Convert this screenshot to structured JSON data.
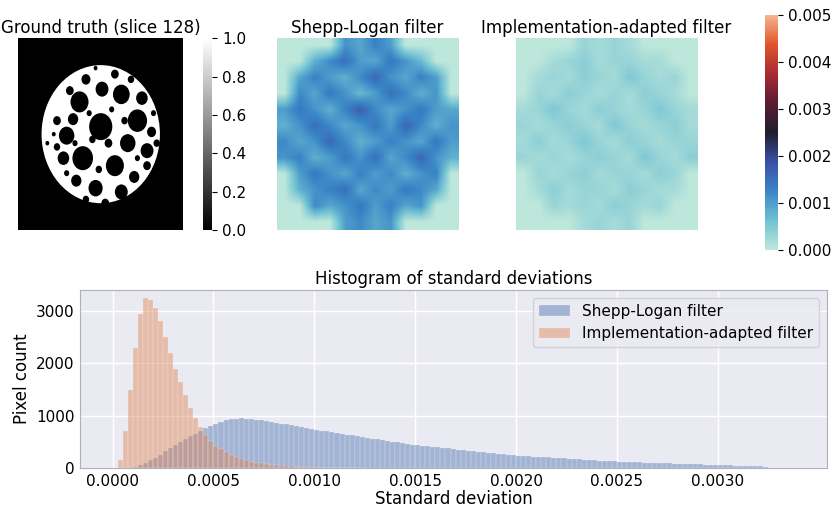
{
  "chart_data": [
    {
      "type": "image",
      "title": "Ground truth (slice 128)",
      "tick_labels": false,
      "xlim": [
        0,
        256
      ],
      "ylim": [
        256,
        0
      ],
      "clim": [
        0.0,
        1.0
      ],
      "colorbar_ticks": [
        0.0,
        0.2,
        0.4,
        0.6,
        0.8,
        1.0
      ],
      "background": 0,
      "disk": {
        "x": 128,
        "y": 128,
        "r": 92,
        "value": 1
      },
      "holes": {
        "value": 0,
        "circles": [
          [
            128,
            118,
            18
          ],
          [
            95,
            85,
            14
          ],
          [
            160,
            75,
            13
          ],
          [
            185,
            110,
            15
          ],
          [
            100,
            160,
            16
          ],
          [
            150,
            170,
            14
          ],
          [
            170,
            140,
            12
          ],
          [
            75,
            130,
            12
          ],
          [
            200,
            150,
            10
          ],
          [
            120,
            200,
            11
          ],
          [
            160,
            205,
            10
          ],
          [
            85,
            108,
            8
          ],
          [
            130,
            68,
            10
          ],
          [
            192,
            80,
            9
          ],
          [
            70,
            160,
            9
          ],
          [
            207,
            125,
            7
          ],
          [
            105,
            55,
            7
          ],
          [
            150,
            48,
            6
          ],
          [
            180,
            185,
            8
          ],
          [
            90,
            190,
            8
          ],
          [
            140,
            140,
            6
          ],
          [
            115,
            135,
            5
          ],
          [
            60,
            110,
            6
          ],
          [
            60,
            145,
            5
          ],
          [
            215,
            140,
            5
          ],
          [
            135,
            220,
            6
          ],
          [
            105,
            215,
            5
          ],
          [
            175,
            55,
            5
          ],
          [
            80,
            70,
            6
          ],
          [
            200,
            170,
            6
          ],
          [
            125,
            175,
            5
          ],
          [
            165,
            110,
            5
          ],
          [
            110,
            100,
            4
          ],
          [
            145,
            95,
            4
          ],
          [
            88,
            140,
            4
          ],
          [
            55,
            128,
            3
          ],
          [
            195,
            200,
            4
          ],
          [
            75,
            180,
            4
          ],
          [
            120,
            40,
            3
          ],
          [
            210,
            100,
            4
          ],
          [
            150,
            225,
            4
          ],
          [
            185,
            160,
            4
          ],
          [
            100,
            240,
            3
          ],
          [
            165,
            40,
            3
          ],
          [
            45,
            140,
            3
          ]
        ]
      }
    },
    {
      "type": "image",
      "title": "Shepp-Logan filter",
      "tick_labels": false,
      "clim": [
        0,
        0.005
      ],
      "cells": [
        [
          0,
          0,
          0,
          0,
          0.0011,
          0.0009,
          0.0013,
          0.001,
          0,
          0,
          0,
          0
        ],
        [
          0,
          0,
          0.0008,
          0.0012,
          0.0015,
          0.001,
          0.0009,
          0.0014,
          0.0011,
          0.0007,
          0,
          0
        ],
        [
          0,
          0.0009,
          0.0013,
          0.001,
          0.0008,
          0.0012,
          0.0016,
          0.0011,
          0.0009,
          0.0013,
          0.001,
          0
        ],
        [
          0,
          0.0012,
          0.0009,
          0.0014,
          0.0011,
          0.0007,
          0.001,
          0.0015,
          0.0012,
          0.0008,
          0.0011,
          0
        ],
        [
          0.001,
          0.0014,
          0.0011,
          0.0008,
          0.0013,
          0.0017,
          0.0012,
          0.0009,
          0.0011,
          0.0014,
          0.001,
          0.0009
        ],
        [
          0.0008,
          0.0011,
          0.0015,
          0.0012,
          0.0009,
          0.0011,
          0.0014,
          0.001,
          0.0016,
          0.0012,
          0.0008,
          0.0011
        ],
        [
          0.0012,
          0.0009,
          0.0011,
          0.0016,
          0.0012,
          0.0008,
          0.001,
          0.0013,
          0.0011,
          0.0009,
          0.0014,
          0.001
        ],
        [
          0.0011,
          0.0013,
          0.0008,
          0.001,
          0.0014,
          0.0011,
          0.0015,
          0.0009,
          0.0012,
          0.0016,
          0.0011,
          0.0008
        ],
        [
          0,
          0.001,
          0.0014,
          0.0011,
          0.0009,
          0.0013,
          0.001,
          0.0012,
          0.0008,
          0.0011,
          0.0013,
          0
        ],
        [
          0,
          0.0008,
          0.0011,
          0.0013,
          0.0015,
          0.0009,
          0.0012,
          0.001,
          0.0014,
          0.0012,
          0.0009,
          0
        ],
        [
          0,
          0,
          0.0012,
          0.0009,
          0.0011,
          0.0014,
          0.001,
          0.0013,
          0.0009,
          0.0011,
          0,
          0
        ],
        [
          0,
          0,
          0,
          0,
          0.001,
          0.0012,
          0.0009,
          0.0011,
          0,
          0,
          0,
          0
        ]
      ]
    },
    {
      "type": "image",
      "title": "Implementation-adapted filter",
      "tick_labels": false,
      "clim": [
        0,
        0.005
      ],
      "colorbar_ticks": [
        {
          "value": 0,
          "label": "0.000"
        },
        0.001,
        0.002,
        0.003,
        0.004,
        0.005
      ],
      "cells": [
        [
          0,
          0,
          0,
          0,
          0.0003,
          0.0002,
          0.0003,
          0.0002,
          0,
          0,
          0,
          0
        ],
        [
          0,
          0,
          0.0002,
          0.0003,
          0.0004,
          0.0002,
          0.0003,
          0.0003,
          0.0002,
          0.0002,
          0,
          0
        ],
        [
          0,
          0.0002,
          0.0003,
          0.0002,
          0.0004,
          0.0003,
          0.0002,
          0.0005,
          0.0003,
          0.0002,
          0.0003,
          0
        ],
        [
          0,
          0.0003,
          0.0002,
          0.0004,
          0.0003,
          0.0002,
          0.0003,
          0.0002,
          0.0004,
          0.0003,
          0.0002,
          0
        ],
        [
          0.0002,
          0.0003,
          0.0005,
          0.0003,
          0.0002,
          0.0004,
          0.0003,
          0.0002,
          0.0003,
          0.0005,
          0.0003,
          0.0002
        ],
        [
          0.0003,
          0.0002,
          0.0003,
          0.0004,
          0.0003,
          0.0002,
          0.0005,
          0.0003,
          0.0002,
          0.0003,
          0.0004,
          0.0002
        ],
        [
          0.0002,
          0.0004,
          0.0002,
          0.0003,
          0.0005,
          0.0003,
          0.0002,
          0.0004,
          0.0003,
          0.0002,
          0.0003,
          0.0003
        ],
        [
          0.0003,
          0.0002,
          0.0003,
          0.0002,
          0.0003,
          0.0004,
          0.0003,
          0.0002,
          0.0005,
          0.0003,
          0.0002,
          0.0004
        ],
        [
          0,
          0.0003,
          0.0002,
          0.0003,
          0.0004,
          0.0002,
          0.0003,
          0.0003,
          0.0002,
          0.0004,
          0.0003,
          0
        ],
        [
          0,
          0.0002,
          0.0004,
          0.0002,
          0.0003,
          0.0003,
          0.0002,
          0.0004,
          0.0003,
          0.0002,
          0.0002,
          0
        ],
        [
          0,
          0,
          0.0003,
          0.0002,
          0.0003,
          0.0002,
          0.0004,
          0.0003,
          0.0002,
          0.0003,
          0,
          0
        ],
        [
          0,
          0,
          0,
          0,
          0.0002,
          0.0003,
          0.0002,
          0.0003,
          0,
          0,
          0,
          0
        ]
      ]
    },
    {
      "type": "histogram",
      "title": "Histogram of standard deviations",
      "x_label": "Standard deviation",
      "y_label": "Pixel count",
      "xlim": [
        -0.00016,
        0.00354
      ],
      "ylim": [
        0,
        3400
      ],
      "xticks": [
        {
          "value": 0,
          "label": "0.0000"
        },
        0.0005,
        {
          "value": 0.001,
          "label": "0.0010"
        },
        0.0015,
        {
          "value": 0.002,
          "label": "0.0020"
        },
        0.0025,
        {
          "value": 0.003,
          "label": "0.0030"
        }
      ],
      "yticks": [
        0,
        1000,
        2000,
        3000
      ],
      "grid": true,
      "legend": "upper right",
      "series": [
        {
          "name": "Shepp-Logan filter",
          "color": "#4c72b0",
          "bins": [
            0.0,
            2.5e-05,
            5e-05,
            7.5e-05,
            0.0001,
            0.000125,
            0.00015,
            0.000175,
            0.0002,
            0.000225,
            0.00025,
            0.000275,
            0.0003,
            0.000325,
            0.00035,
            0.000375,
            0.0004,
            0.000425,
            0.00045,
            0.000475,
            0.0005,
            0.000525,
            0.00055,
            0.000575,
            0.0006,
            0.000625,
            0.00065,
            0.000675,
            0.0007,
            0.000725,
            0.00075,
            0.000775,
            0.0008,
            0.000825,
            0.00085,
            0.000875,
            0.0009,
            0.000925,
            0.00095,
            0.000975,
            0.001,
            0.001025,
            0.00105,
            0.001075,
            0.0011,
            0.001125,
            0.00115,
            0.001175,
            0.0012,
            0.001225,
            0.00125,
            0.001275,
            0.0013,
            0.001325,
            0.00135,
            0.001375,
            0.0014,
            0.001425,
            0.00145,
            0.001475,
            0.0015,
            0.001525,
            0.00155,
            0.001575,
            0.0016,
            0.001625,
            0.00165,
            0.001675,
            0.0017,
            0.001725,
            0.00175,
            0.001775,
            0.0018,
            0.001825,
            0.00185,
            0.001875,
            0.0019,
            0.001925,
            0.00195,
            0.001975,
            0.002,
            0.002025,
            0.00205,
            0.002075,
            0.0021,
            0.002125,
            0.00215,
            0.002175,
            0.0022,
            0.002225,
            0.00225,
            0.002275,
            0.0023,
            0.002325,
            0.00235,
            0.002375,
            0.0024,
            0.002425,
            0.00245,
            0.002475,
            0.0025,
            0.002525,
            0.00255,
            0.002575,
            0.0026,
            0.002625,
            0.00265,
            0.002675,
            0.0027,
            0.002725,
            0.00275,
            0.002775,
            0.0028,
            0.002825,
            0.00285,
            0.002875,
            0.0029,
            0.002925,
            0.00295,
            0.002975,
            0.003,
            0.003025,
            0.00305,
            0.003075,
            0.0031,
            0.003125,
            0.00315,
            0.003175,
            0.0032,
            0.003225,
            0.00325
          ],
          "counts": [
            0,
            0,
            0,
            10,
            30,
            60,
            100,
            150,
            200,
            260,
            320,
            380,
            440,
            500,
            560,
            610,
            660,
            710,
            760,
            800,
            840,
            880,
            910,
            930,
            945,
            950,
            945,
            935,
            925,
            910,
            895,
            880,
            865,
            850,
            835,
            820,
            800,
            785,
            765,
            750,
            730,
            715,
            700,
            685,
            670,
            655,
            640,
            625,
            610,
            595,
            580,
            565,
            550,
            535,
            520,
            505,
            490,
            475,
            460,
            445,
            435,
            425,
            415,
            405,
            395,
            385,
            375,
            365,
            355,
            345,
            335,
            325,
            315,
            305,
            295,
            285,
            275,
            265,
            258,
            250,
            240,
            234,
            228,
            222,
            216,
            210,
            204,
            198,
            192,
            186,
            180,
            174,
            168,
            162,
            156,
            150,
            145,
            140,
            135,
            130,
            126,
            122,
            118,
            114,
            110,
            106,
            102,
            98,
            95,
            92,
            89,
            86,
            83,
            80,
            77,
            74,
            71,
            68,
            65,
            62,
            58,
            55,
            52,
            49,
            46,
            43,
            40,
            37,
            34,
            31
          ]
        },
        {
          "name": "Implementation-adapted filter",
          "color": "#dd8452",
          "bins": [
            0.0,
            2.5e-05,
            5e-05,
            7.5e-05,
            0.0001,
            0.000125,
            0.00015,
            0.000175,
            0.0002,
            0.000225,
            0.00025,
            0.000275,
            0.0003,
            0.000325,
            0.00035,
            0.000375,
            0.0004,
            0.000425,
            0.00045,
            0.000475,
            0.0005,
            0.000525,
            0.00055,
            0.000575,
            0.0006,
            0.000625,
            0.00065,
            0.000675,
            0.0007,
            0.000725,
            0.00075,
            0.000775,
            0.0008,
            0.000825,
            0.00085,
            0.000875,
            0.0009,
            0.000925,
            0.00095,
            0.000975,
            0.001,
            0.001025,
            0.00105,
            0.001075,
            0.0011,
            0.001125,
            0.00115,
            0.001175,
            0.0012,
            0.001225,
            0.00125
          ],
          "counts": [
            0,
            150,
            700,
            1500,
            2300,
            2950,
            3250,
            3200,
            3050,
            2800,
            2500,
            2200,
            1900,
            1650,
            1400,
            1150,
            950,
            780,
            640,
            520,
            430,
            360,
            300,
            250,
            210,
            175,
            150,
            125,
            105,
            90,
            75,
            65,
            55,
            45,
            38,
            32,
            27,
            22,
            18,
            15,
            12,
            10,
            8,
            6,
            5,
            4,
            3,
            2,
            1,
            1
          ]
        }
      ]
    }
  ]
}
